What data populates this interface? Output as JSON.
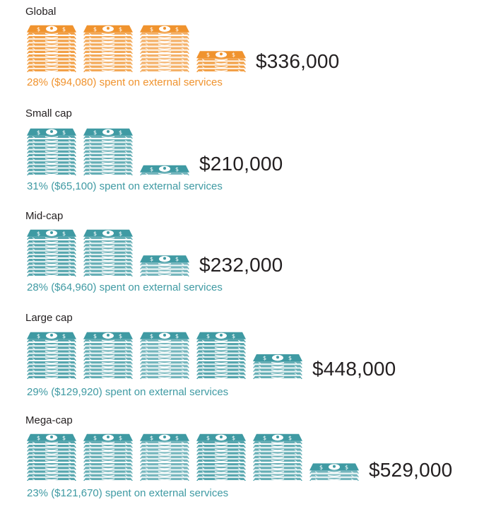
{
  "chart_data": {
    "type": "bar",
    "title": "",
    "unit_per_full_stack": 100000,
    "categories": [
      "Global",
      "Small cap",
      "Mid-cap",
      "Large cap",
      "Mega-cap"
    ],
    "series": [
      {
        "values": [
          336000,
          210000,
          232000,
          448000,
          529000
        ]
      }
    ],
    "external_share_pct": [
      28,
      31,
      28,
      29,
      23
    ],
    "external_amount": [
      94080,
      65100,
      64960,
      129920,
      121670
    ],
    "rows": [
      {
        "label": "Global",
        "total": "$336,000",
        "share_text": "28% ($94,080) spent on external services",
        "color": "#f0932e",
        "value": 336000,
        "share": 0.28
      },
      {
        "label": "Small cap",
        "total": "$210,000",
        "share_text": "31% ($65,100) spent on external services",
        "color": "#3f9aa3",
        "value": 210000,
        "share": 0.31
      },
      {
        "label": "Mid-cap",
        "total": "$232,000",
        "share_text": "28% ($64,960) spent on external services",
        "color": "#3f9aa3",
        "value": 232000,
        "share": 0.28
      },
      {
        "label": "Large cap",
        "total": "$448,000",
        "share_text": "29% ($129,920) spent on external services",
        "color": "#3f9aa3",
        "value": 448000,
        "share": 0.29
      },
      {
        "label": "Mega-cap",
        "total": "$529,000",
        "share_text": "23% ($121,670) spent on external services",
        "color": "#3f9aa3",
        "value": 529000,
        "share": 0.23
      }
    ]
  }
}
